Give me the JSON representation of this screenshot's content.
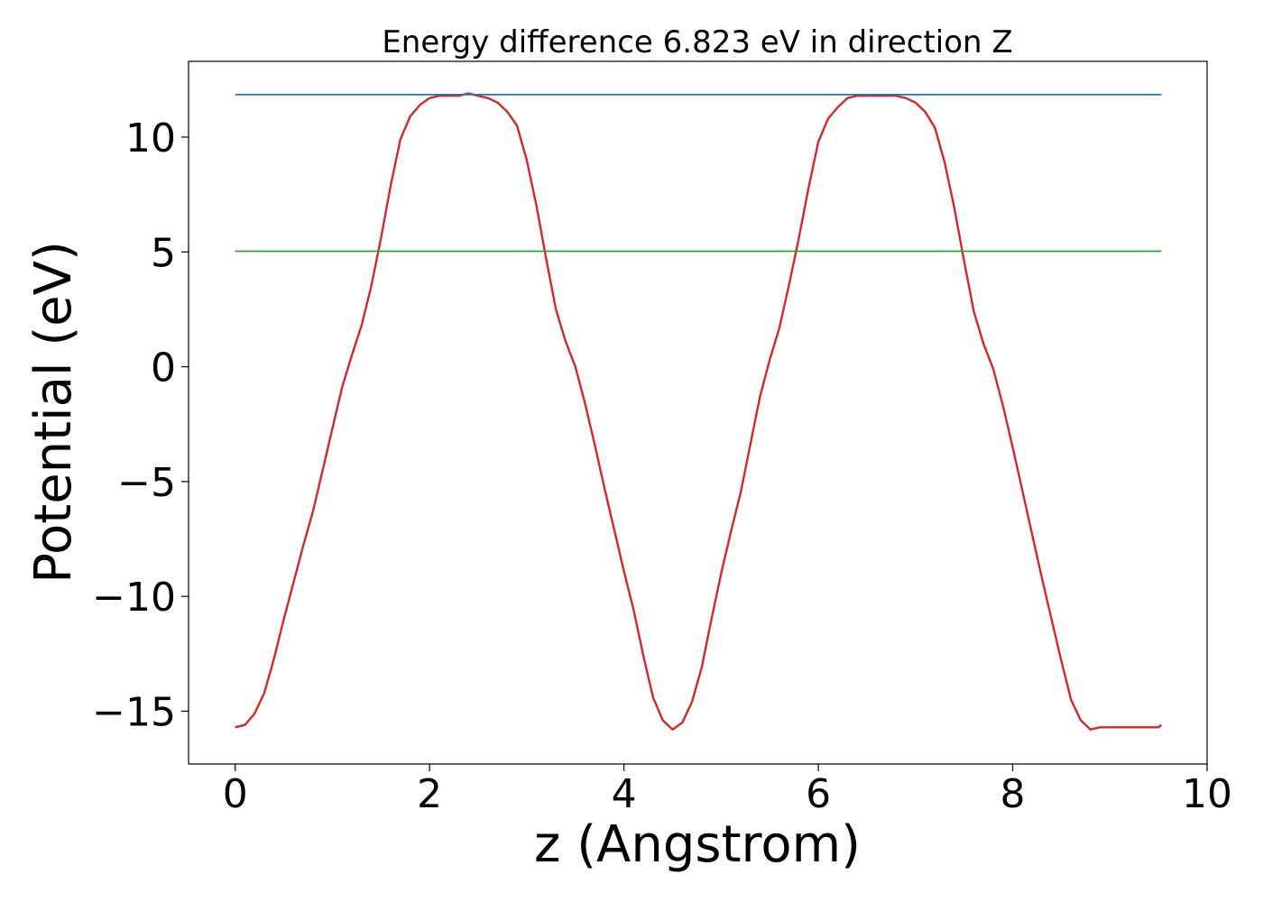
{
  "chart_data": {
    "type": "line",
    "title": "Energy difference 6.823 eV in direction Z",
    "xlabel": "z (Angstrom)",
    "ylabel": "Potential (eV)",
    "xlim": [
      -0.48,
      10.0
    ],
    "ylim": [
      -17.3,
      13.3
    ],
    "xticks": [
      0,
      2,
      4,
      6,
      8,
      10
    ],
    "yticks": [
      -15,
      -10,
      -5,
      0,
      5,
      10
    ],
    "xtick_labels": [
      "0",
      "2",
      "4",
      "6",
      "8",
      "10"
    ],
    "ytick_labels": [
      "−15",
      "−10",
      "−5",
      "0",
      "5",
      "10"
    ],
    "grid": false,
    "legend": "none",
    "series": [
      {
        "color": "#d62728",
        "x": [
          0.0,
          0.1,
          0.2,
          0.3,
          0.4,
          0.5,
          0.6,
          0.7,
          0.8,
          0.9,
          1.0,
          1.1,
          1.2,
          1.3,
          1.4,
          1.5,
          1.6,
          1.7,
          1.8,
          1.9,
          2.0,
          2.1,
          2.2,
          2.3,
          2.4,
          2.5,
          2.6,
          2.7,
          2.8,
          2.9,
          3.0,
          3.1,
          3.2,
          3.3,
          3.4,
          3.5,
          3.6,
          3.7,
          3.8,
          3.9,
          4.0,
          4.1,
          4.2,
          4.3,
          4.4,
          4.5,
          4.6,
          4.7,
          4.8,
          4.9,
          5.0,
          5.1,
          5.2,
          5.3,
          5.4,
          5.5,
          5.6,
          5.7,
          5.8,
          5.9,
          6.0,
          6.1,
          6.2,
          6.3,
          6.4,
          6.5,
          6.6,
          6.7,
          6.8,
          6.9,
          7.0,
          7.1,
          7.2,
          7.3,
          7.4,
          7.5,
          7.6,
          7.7,
          7.8,
          7.9,
          8.0,
          8.1,
          8.2,
          8.3,
          8.4,
          8.5,
          8.6,
          8.7,
          8.8,
          8.9,
          9.0,
          9.1,
          9.2,
          9.3,
          9.4,
          9.5,
          9.53
        ],
        "y": [
          -15.7,
          -15.6,
          -15.1,
          -14.2,
          -12.7,
          -11.0,
          -9.4,
          -7.8,
          -6.3,
          -4.5,
          -2.7,
          -0.9,
          0.5,
          1.8,
          3.5,
          5.6,
          7.9,
          9.9,
          10.9,
          11.4,
          11.7,
          11.8,
          11.8,
          11.8,
          11.9,
          11.8,
          11.7,
          11.5,
          11.1,
          10.5,
          9.0,
          7.0,
          4.7,
          2.5,
          1.1,
          0.0,
          -1.6,
          -3.4,
          -5.3,
          -7.1,
          -8.9,
          -10.6,
          -12.6,
          -14.4,
          -15.4,
          -15.8,
          -15.5,
          -14.6,
          -13.1,
          -11.0,
          -9.0,
          -7.2,
          -5.5,
          -3.4,
          -1.3,
          0.3,
          1.7,
          3.6,
          5.6,
          7.8,
          9.8,
          10.8,
          11.3,
          11.7,
          11.8,
          11.8,
          11.8,
          11.8,
          11.8,
          11.7,
          11.5,
          11.1,
          10.4,
          8.9,
          6.9,
          4.6,
          2.4,
          1.0,
          -0.1,
          -1.7,
          -3.5,
          -5.4,
          -7.3,
          -9.2,
          -11.0,
          -12.8,
          -14.5,
          -15.4,
          -15.8,
          -15.7,
          -15.7,
          -15.7,
          -15.7,
          -15.7,
          -15.7,
          -15.7,
          -15.6
        ]
      },
      {
        "color": "#1f77b4",
        "x": [
          0.0,
          9.53
        ],
        "y": [
          11.85,
          11.85
        ]
      },
      {
        "color": "#2ca02c",
        "x": [
          0.0,
          9.53
        ],
        "y": [
          5.03,
          5.03
        ]
      }
    ]
  }
}
